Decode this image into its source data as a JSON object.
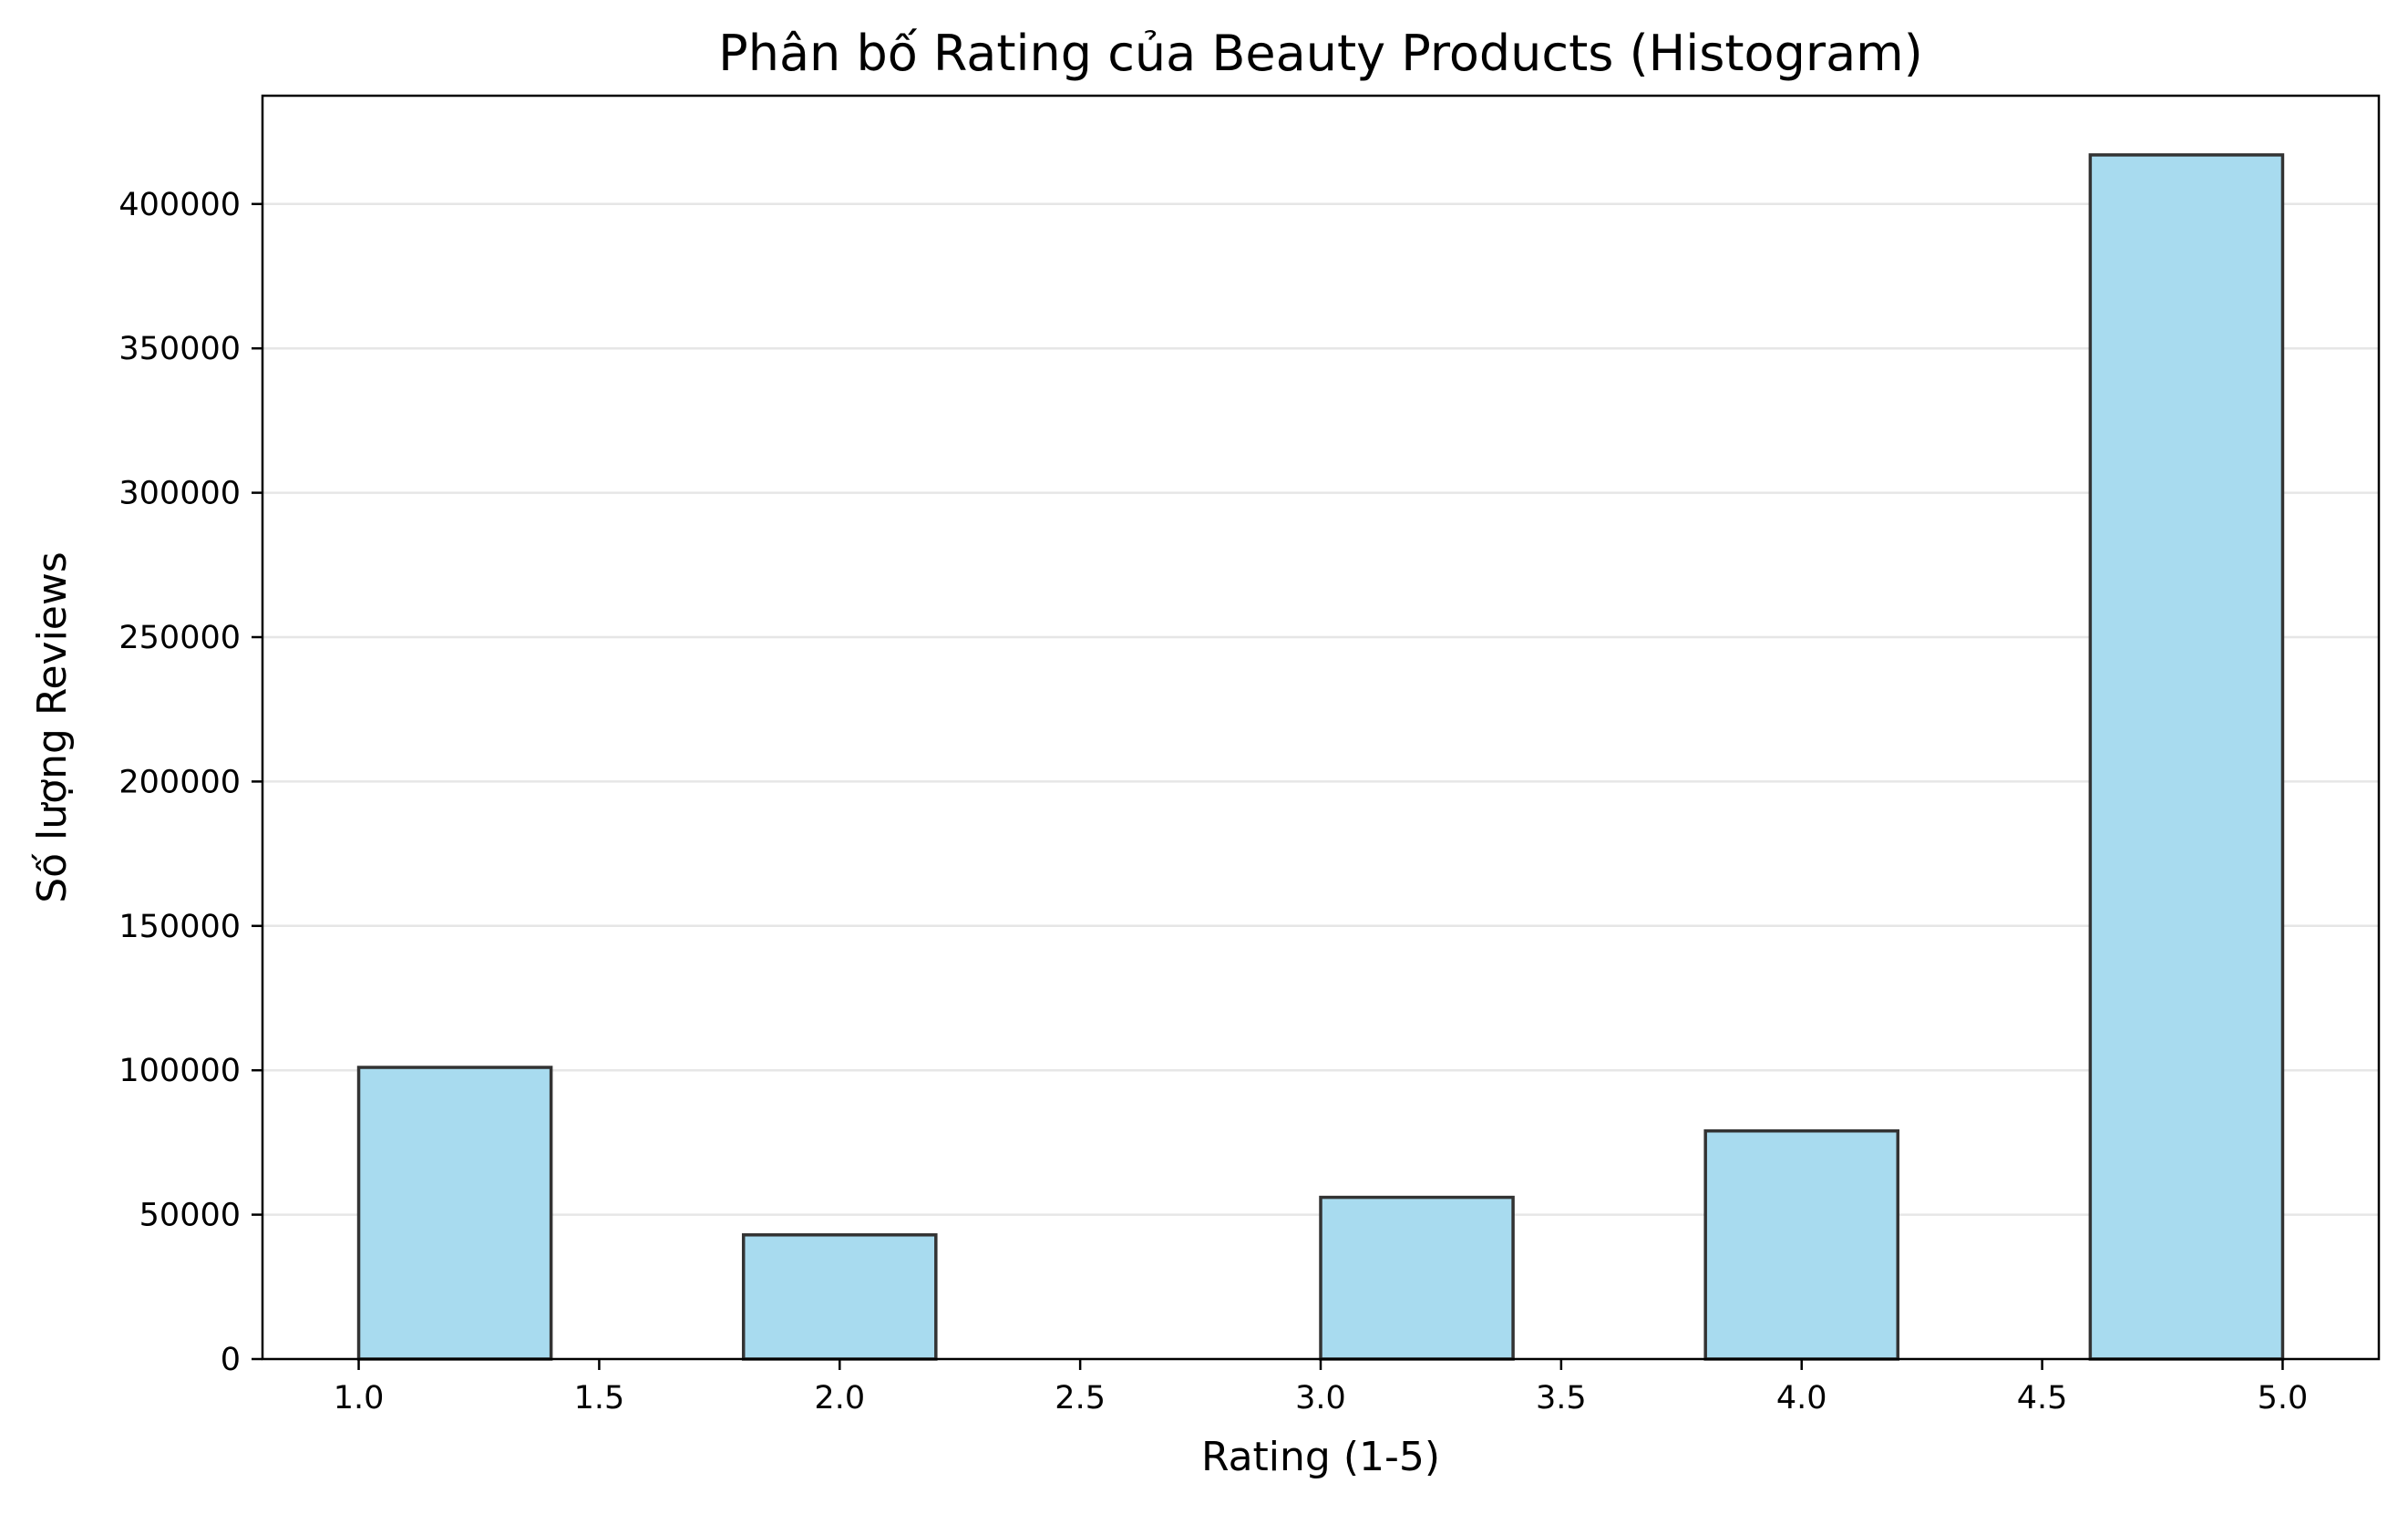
{
  "chart_data": {
    "type": "bar",
    "title": "Phân bố Rating của Beauty Products (Histogram)",
    "xlabel": "Rating (1-5)",
    "ylabel": "Số lượng Reviews",
    "bins": [
      {
        "x_start": 1.0,
        "x_end": 1.4,
        "value": 101000
      },
      {
        "x_start": 1.4,
        "x_end": 1.8,
        "value": 0
      },
      {
        "x_start": 1.8,
        "x_end": 2.2,
        "value": 43000
      },
      {
        "x_start": 2.2,
        "x_end": 2.6,
        "value": 0
      },
      {
        "x_start": 2.6,
        "x_end": 3.0,
        "value": 0
      },
      {
        "x_start": 3.0,
        "x_end": 3.4,
        "value": 56000
      },
      {
        "x_start": 3.4,
        "x_end": 3.8,
        "value": 0
      },
      {
        "x_start": 3.8,
        "x_end": 4.2,
        "value": 79000
      },
      {
        "x_start": 4.2,
        "x_end": 4.6,
        "value": 0
      },
      {
        "x_start": 4.6,
        "x_end": 5.0,
        "value": 417000
      }
    ],
    "xlim": [
      0.8,
      5.2
    ],
    "ylim": [
      0,
      437500
    ],
    "x_ticks": [
      "1.0",
      "1.5",
      "2.0",
      "2.5",
      "3.0",
      "3.5",
      "4.0",
      "4.5",
      "5.0"
    ],
    "y_ticks": [
      "0",
      "50000",
      "100000",
      "150000",
      "200000",
      "250000",
      "300000",
      "350000",
      "400000"
    ],
    "grid": "y-axis",
    "legend": "none",
    "colors": {
      "bar_fill": "#a8dbef",
      "bar_edge": "#333333",
      "grid": "#e6e6e6",
      "axis": "#000000"
    }
  }
}
